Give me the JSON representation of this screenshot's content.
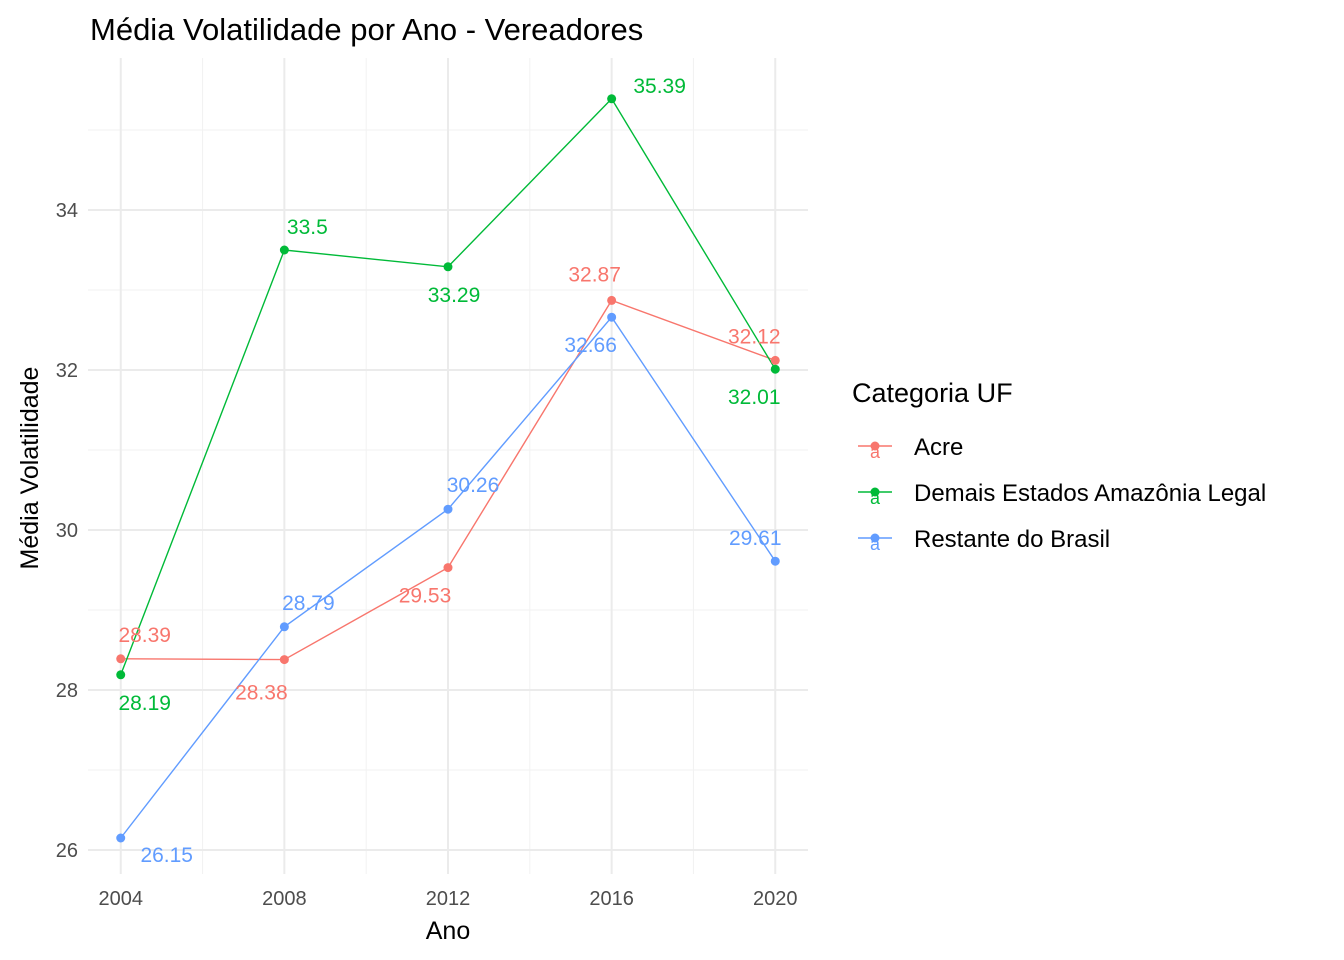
{
  "chart_data": {
    "type": "line",
    "title": "Média Volatilidade por Ano - Vereadores",
    "xlabel": "Ano",
    "ylabel": "Média Volatilidade",
    "x": [
      2004,
      2008,
      2012,
      2016,
      2020
    ],
    "x_ticks": [
      "2004",
      "2008",
      "2012",
      "2016",
      "2020"
    ],
    "xlim": [
      2003.2,
      2020.8
    ],
    "ylim": [
      25.7,
      35.9
    ],
    "y_ticks": [
      "26",
      "28",
      "30",
      "32",
      "34"
    ],
    "grid": true,
    "legend": {
      "title": "Categoria UF",
      "position": "right"
    },
    "series": [
      {
        "name": "Acre",
        "color": "#F8766D",
        "values": [
          28.39,
          28.38,
          29.53,
          32.87,
          32.12
        ],
        "labels": [
          "28.39",
          "28.38",
          "29.53",
          "32.87",
          "32.12"
        ]
      },
      {
        "name": "Demais Estados Amazônia Legal",
        "color": "#00BA38",
        "values": [
          28.19,
          33.5,
          33.29,
          35.39,
          32.01
        ],
        "labels": [
          "28.19",
          "33.5",
          "33.29",
          "35.39",
          "32.01"
        ]
      },
      {
        "name": "Restante do Brasil",
        "color": "#619CFF",
        "values": [
          26.15,
          28.79,
          30.26,
          32.66,
          29.61
        ],
        "labels": [
          "26.15",
          "28.79",
          "30.26",
          "32.66",
          "29.61"
        ]
      }
    ]
  }
}
